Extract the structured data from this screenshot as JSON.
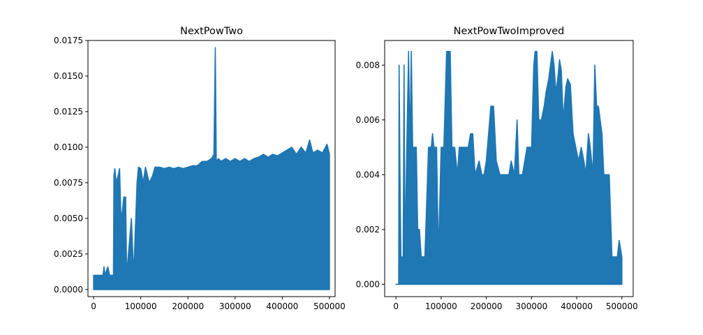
{
  "figure": {
    "background": "#ffffff",
    "series_color": "#1f77b4"
  },
  "chart_data": [
    {
      "type": "line",
      "title": "NextPowTwo",
      "xlabel": "",
      "ylabel": "",
      "xlim": [
        -12000,
        512000
      ],
      "ylim": [
        -0.0005,
        0.0175
      ],
      "xticks": [
        0,
        100000,
        200000,
        300000,
        400000,
        500000
      ],
      "xtick_labels": [
        "0",
        "100000",
        "200000",
        "300000",
        "400000",
        "500000"
      ],
      "yticks": [
        0.0,
        0.0025,
        0.005,
        0.0075,
        0.01,
        0.0125,
        0.015,
        0.0175
      ],
      "ytick_labels": [
        "0.0000",
        "0.0025",
        "0.0050",
        "0.0075",
        "0.0100",
        "0.0125",
        "0.0150",
        "0.0175"
      ],
      "grid": false,
      "legend": "none",
      "series": [
        {
          "color": "#1f77b4",
          "envelope": [
            [
              0,
              0.001
            ],
            [
              20000,
              0.001
            ],
            [
              22000,
              0.0016
            ],
            [
              24000,
              0.001
            ],
            [
              30000,
              0.0016
            ],
            [
              34000,
              0.001
            ],
            [
              42000,
              0.001
            ],
            [
              43000,
              0.008
            ],
            [
              45000,
              0.0085
            ],
            [
              48000,
              0.0075
            ],
            [
              52000,
              0.008
            ],
            [
              55000,
              0.0085
            ],
            [
              58000,
              0.005
            ],
            [
              61000,
              0.0055
            ],
            [
              64000,
              0.0065
            ],
            [
              68000,
              0.0065
            ],
            [
              70000,
              0.001
            ],
            [
              80000,
              0.005
            ],
            [
              85000,
              0.001
            ],
            [
              92000,
              0.0075
            ],
            [
              95000,
              0.0086
            ],
            [
              100000,
              0.0085
            ],
            [
              105000,
              0.0075
            ],
            [
              110000,
              0.0086
            ],
            [
              118000,
              0.0075
            ],
            [
              125000,
              0.008
            ],
            [
              130000,
              0.0086
            ],
            [
              140000,
              0.0086
            ],
            [
              150000,
              0.0085
            ],
            [
              160000,
              0.0086
            ],
            [
              170000,
              0.0085
            ],
            [
              180000,
              0.0086
            ],
            [
              190000,
              0.0085
            ],
            [
              200000,
              0.0086
            ],
            [
              210000,
              0.0087
            ],
            [
              220000,
              0.0087
            ],
            [
              230000,
              0.009
            ],
            [
              240000,
              0.009
            ],
            [
              250000,
              0.0092
            ],
            [
              255000,
              0.0095
            ],
            [
              258000,
              0.017
            ],
            [
              260000,
              0.009
            ],
            [
              265000,
              0.0092
            ],
            [
              270000,
              0.009
            ],
            [
              280000,
              0.0092
            ],
            [
              290000,
              0.009
            ],
            [
              300000,
              0.0092
            ],
            [
              310000,
              0.009
            ],
            [
              320000,
              0.0092
            ],
            [
              330000,
              0.009
            ],
            [
              340000,
              0.0092
            ],
            [
              350000,
              0.0093
            ],
            [
              360000,
              0.0095
            ],
            [
              370000,
              0.0093
            ],
            [
              380000,
              0.0095
            ],
            [
              390000,
              0.0094
            ],
            [
              400000,
              0.0096
            ],
            [
              410000,
              0.0098
            ],
            [
              420000,
              0.01
            ],
            [
              430000,
              0.0095
            ],
            [
              440000,
              0.01
            ],
            [
              450000,
              0.0096
            ],
            [
              458000,
              0.0105
            ],
            [
              465000,
              0.0096
            ],
            [
              475000,
              0.0098
            ],
            [
              485000,
              0.0096
            ],
            [
              495000,
              0.0102
            ],
            [
              500000,
              0.0095
            ]
          ]
        }
      ]
    },
    {
      "type": "line",
      "title": "NextPowTwoImproved",
      "xlabel": "",
      "ylabel": "",
      "xlim": [
        -25000,
        525000
      ],
      "ylim": [
        -0.00045,
        0.0089
      ],
      "xticks": [
        0,
        100000,
        200000,
        300000,
        400000,
        500000
      ],
      "xtick_labels": [
        "0",
        "100000",
        "200000",
        "300000",
        "400000",
        "500000"
      ],
      "yticks": [
        0.0,
        0.002,
        0.004,
        0.006,
        0.008
      ],
      "ytick_labels": [
        "0.000",
        "0.002",
        "0.004",
        "0.006",
        "0.008"
      ],
      "grid": false,
      "legend": "none",
      "series": [
        {
          "color": "#1f77b4",
          "envelope": [
            [
              0,
              0.0
            ],
            [
              6000,
              0.0
            ],
            [
              7000,
              0.008
            ],
            [
              9000,
              0.004
            ],
            [
              11000,
              0.001
            ],
            [
              16000,
              0.001
            ],
            [
              18000,
              0.008
            ],
            [
              20000,
              0.001
            ],
            [
              24000,
              0.005
            ],
            [
              28000,
              0.0085
            ],
            [
              31000,
              0.005
            ],
            [
              34000,
              0.0085
            ],
            [
              37000,
              0.005
            ],
            [
              42000,
              0.005
            ],
            [
              45000,
              0.005
            ],
            [
              48000,
              0.002
            ],
            [
              52000,
              0.002
            ],
            [
              56000,
              0.001
            ],
            [
              64000,
              0.001
            ],
            [
              72000,
              0.005
            ],
            [
              78000,
              0.005
            ],
            [
              81000,
              0.0055
            ],
            [
              84000,
              0.005
            ],
            [
              90000,
              0.005
            ],
            [
              94000,
              0.001
            ],
            [
              100000,
              0.005
            ],
            [
              106000,
              0.005
            ],
            [
              112000,
              0.0085
            ],
            [
              116000,
              0.0085
            ],
            [
              120000,
              0.0085
            ],
            [
              124000,
              0.005
            ],
            [
              130000,
              0.005
            ],
            [
              136000,
              0.004
            ],
            [
              140000,
              0.005
            ],
            [
              150000,
              0.005
            ],
            [
              160000,
              0.005
            ],
            [
              165000,
              0.0055
            ],
            [
              170000,
              0.0055
            ],
            [
              175000,
              0.004
            ],
            [
              184000,
              0.0045
            ],
            [
              190000,
              0.004
            ],
            [
              195000,
              0.004
            ],
            [
              200000,
              0.0045
            ],
            [
              210000,
              0.0065
            ],
            [
              216000,
              0.0065
            ],
            [
              222000,
              0.0045
            ],
            [
              230000,
              0.004
            ],
            [
              240000,
              0.004
            ],
            [
              250000,
              0.004
            ],
            [
              255000,
              0.0045
            ],
            [
              262000,
              0.004
            ],
            [
              268000,
              0.006
            ],
            [
              272000,
              0.004
            ],
            [
              280000,
              0.004
            ],
            [
              290000,
              0.005
            ],
            [
              300000,
              0.005
            ],
            [
              305000,
              0.008
            ],
            [
              308000,
              0.0085
            ],
            [
              312000,
              0.0085
            ],
            [
              316000,
              0.006
            ],
            [
              322000,
              0.006
            ],
            [
              328000,
              0.0065
            ],
            [
              332000,
              0.007
            ],
            [
              338000,
              0.0075
            ],
            [
              342000,
              0.008
            ],
            [
              346000,
              0.0085
            ],
            [
              350000,
              0.008
            ],
            [
              354000,
              0.007
            ],
            [
              358000,
              0.0075
            ],
            [
              362000,
              0.0082
            ],
            [
              366000,
              0.0078
            ],
            [
              370000,
              0.006
            ],
            [
              376000,
              0.0072
            ],
            [
              380000,
              0.0075
            ],
            [
              386000,
              0.0073
            ],
            [
              392000,
              0.0055
            ],
            [
              398000,
              0.005
            ],
            [
              404000,
              0.0045
            ],
            [
              410000,
              0.005
            ],
            [
              416000,
              0.0045
            ],
            [
              420000,
              0.004
            ],
            [
              426000,
              0.0055
            ],
            [
              430000,
              0.005
            ],
            [
              436000,
              0.004
            ],
            [
              440000,
              0.008
            ],
            [
              444000,
              0.0065
            ],
            [
              448000,
              0.0065
            ],
            [
              452000,
              0.006
            ],
            [
              456000,
              0.0055
            ],
            [
              460000,
              0.004
            ],
            [
              466000,
              0.004
            ],
            [
              472000,
              0.004
            ],
            [
              478000,
              0.001
            ],
            [
              490000,
              0.001
            ],
            [
              494000,
              0.0016
            ],
            [
              500000,
              0.001
            ]
          ]
        }
      ]
    }
  ]
}
